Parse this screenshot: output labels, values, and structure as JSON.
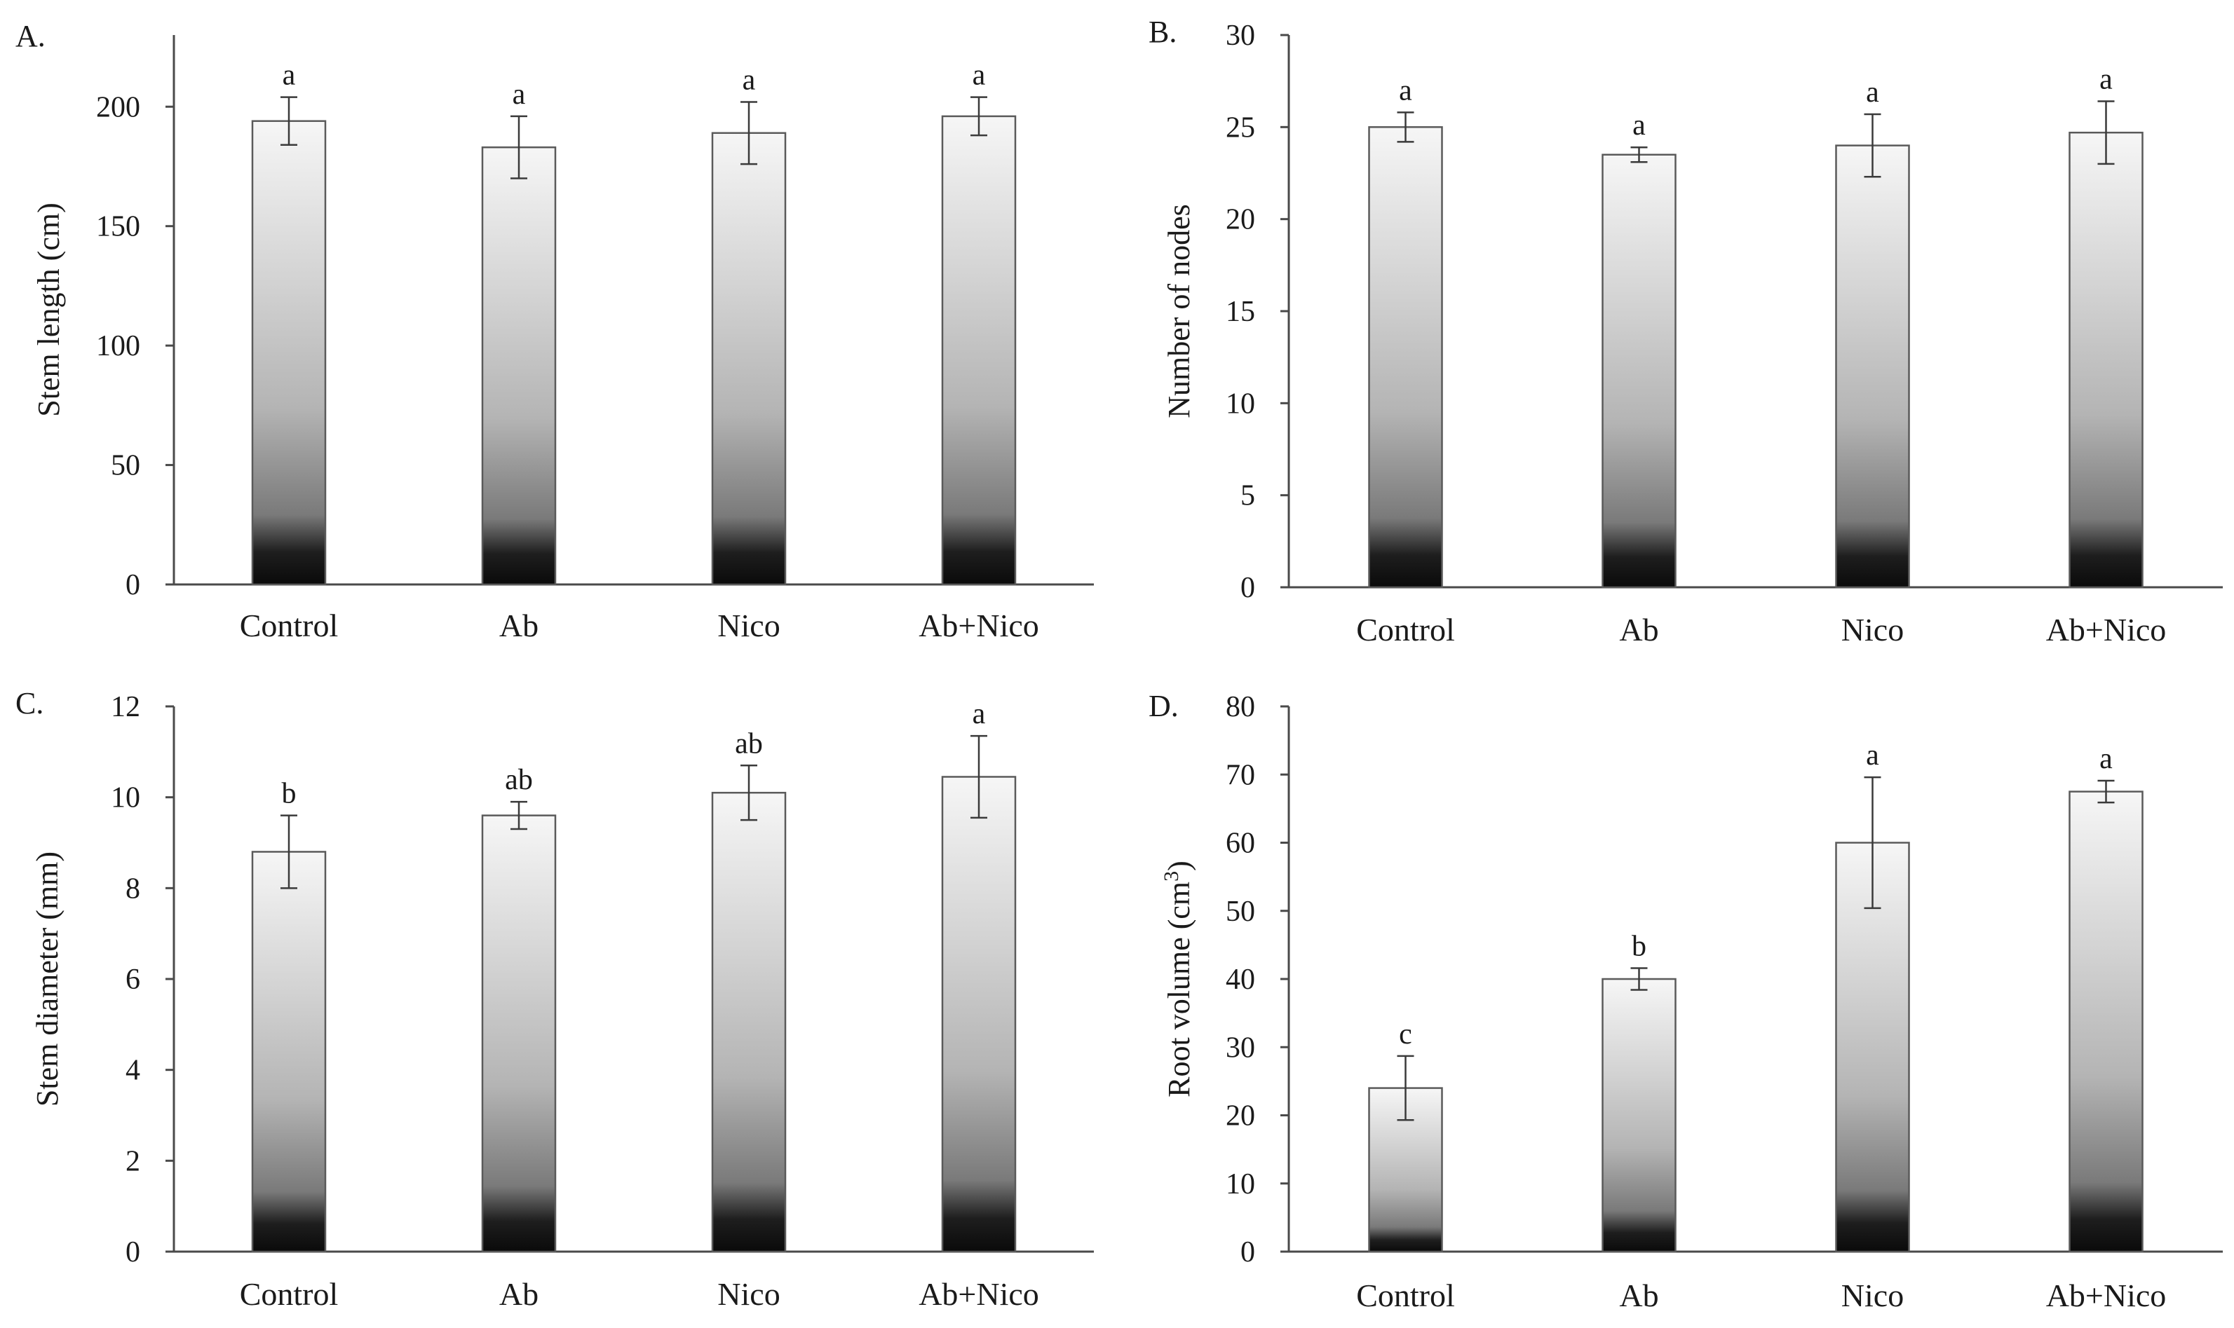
{
  "chart_data": [
    {
      "id": "A",
      "panel_label": "A.",
      "type": "bar",
      "ylabel": "Stem length (cm)",
      "xlabel": "",
      "categories": [
        "Control",
        "Ab",
        "Nico",
        "Ab+Nico"
      ],
      "values": [
        194,
        183,
        189,
        196
      ],
      "errors": [
        10,
        13,
        13,
        8
      ],
      "significance": [
        "a",
        "a",
        "a",
        "a"
      ],
      "ylim": [
        0,
        230
      ],
      "yticks": [
        0,
        50,
        100,
        150,
        200
      ],
      "ytick_labels": [
        "0",
        "50",
        "100",
        "150",
        "200"
      ],
      "grid": false
    },
    {
      "id": "B",
      "panel_label": "B.",
      "type": "bar",
      "ylabel": "Number of nodes",
      "xlabel": "",
      "categories": [
        "Control",
        "Ab",
        "Nico",
        "Ab+Nico"
      ],
      "values": [
        25,
        23.5,
        24,
        24.7
      ],
      "errors": [
        0.8,
        0.4,
        1.7,
        1.7
      ],
      "significance": [
        "a",
        "a",
        "a",
        "a"
      ],
      "ylim": [
        0,
        30
      ],
      "yticks": [
        0,
        5,
        10,
        15,
        20,
        25,
        30
      ],
      "ytick_labels": [
        "0",
        "5",
        "10",
        "15",
        "20",
        "25",
        "30"
      ],
      "grid": false
    },
    {
      "id": "C",
      "panel_label": "C.",
      "type": "bar",
      "ylabel": "Stem diameter (mm)",
      "xlabel": "",
      "categories": [
        "Control",
        "Ab",
        "Nico",
        "Ab+Nico"
      ],
      "values": [
        8.8,
        9.6,
        10.1,
        10.45
      ],
      "errors": [
        0.8,
        0.3,
        0.6,
        0.9
      ],
      "significance": [
        "b",
        "ab",
        "ab",
        "a"
      ],
      "ylim": [
        0,
        12
      ],
      "yticks": [
        0,
        2,
        4,
        6,
        8,
        10,
        12
      ],
      "ytick_labels": [
        "0",
        "2",
        "4",
        "6",
        "8",
        "10",
        "12"
      ],
      "grid": false
    },
    {
      "id": "D",
      "panel_label": "D.",
      "type": "bar",
      "ylabel": "Root volume (cm",
      "ylabel_sup": "3",
      "ylabel_end": ")",
      "xlabel": "",
      "categories": [
        "Control",
        "Ab",
        "Nico",
        "Ab+Nico"
      ],
      "values": [
        24,
        40,
        60,
        67.5
      ],
      "errors": [
        4.7,
        1.6,
        9.6,
        1.6
      ],
      "significance": [
        "c",
        "b",
        "a",
        "a"
      ],
      "ylim": [
        0,
        80
      ],
      "yticks": [
        0,
        10,
        20,
        30,
        40,
        50,
        60,
        70,
        80
      ],
      "ytick_labels": [
        "0",
        "10",
        "20",
        "30",
        "40",
        "50",
        "60",
        "70",
        "80"
      ],
      "grid": false
    }
  ]
}
